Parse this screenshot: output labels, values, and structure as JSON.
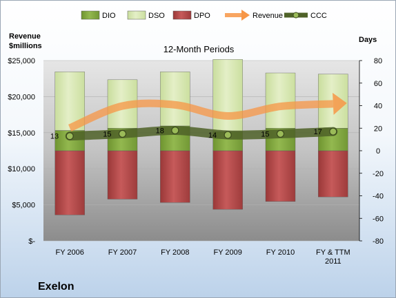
{
  "chart_data": {
    "type": "bar",
    "company": "Exelon",
    "subtitle": "12-Month Periods",
    "ylabel_line1": "Revenue",
    "ylabel_line2": "$millions",
    "y2label": "Days",
    "categories": [
      [
        "FY 2006"
      ],
      [
        "FY 2007"
      ],
      [
        "FY 2008"
      ],
      [
        "FY 2009"
      ],
      [
        "FY 2010"
      ],
      [
        "FY & TTM",
        "2011"
      ]
    ],
    "y_ticks": [
      "$25,000",
      "$20,000",
      "$15,000",
      "$10,000",
      "$5,000",
      "$-"
    ],
    "y_range": [
      0,
      25000
    ],
    "y2_ticks": [
      "80",
      "60",
      "40",
      "20",
      "0",
      "-20",
      "-40",
      "-60",
      "-80"
    ],
    "y2_range": [
      -80,
      80
    ],
    "legend": [
      "DIO",
      "DSO",
      "DPO",
      "Revenue",
      "CCC"
    ],
    "legend_position": "top",
    "series": [
      {
        "name": "DIO",
        "axis": "days",
        "color": "#8db04a",
        "values": [
          18,
          20,
          22,
          17,
          20,
          20
        ]
      },
      {
        "name": "DSO",
        "axis": "days",
        "color": "#d8e8b4",
        "values": [
          52,
          43,
          48,
          64,
          49,
          48
        ]
      },
      {
        "name": "DPO",
        "axis": "days",
        "color": "#c0504d",
        "values": [
          -57,
          -43,
          -46,
          -52,
          -45,
          -41
        ]
      },
      {
        "name": "Revenue",
        "axis": "revenue",
        "color": "#f79646",
        "values": [
          15650,
          18700,
          18860,
          17320,
          18650,
          19000
        ]
      },
      {
        "name": "CCC",
        "axis": "days",
        "color": "#4f6228",
        "values": [
          13,
          15,
          18,
          14,
          15,
          17
        ]
      }
    ],
    "ccc_labels": [
      "13",
      "15",
      "18",
      "14",
      "15",
      "17"
    ]
  }
}
